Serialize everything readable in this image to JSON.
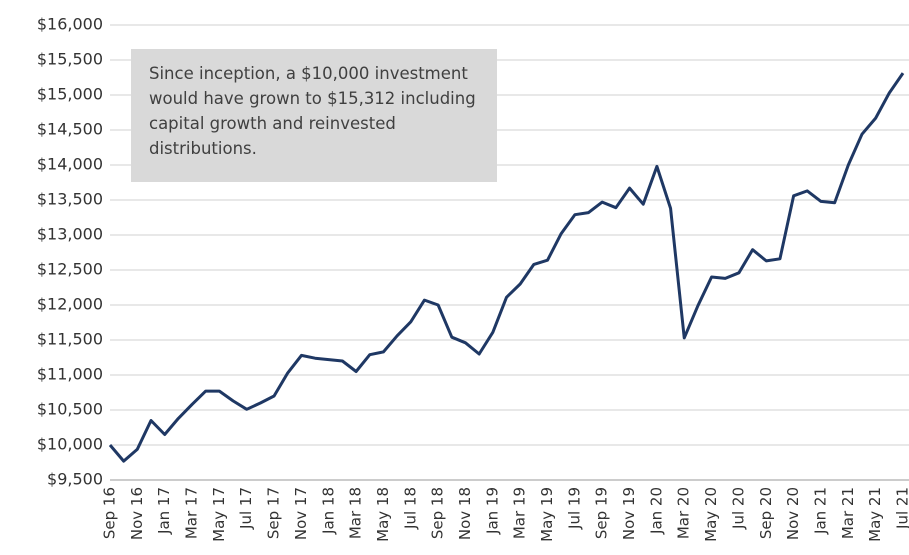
{
  "chart_data": {
    "type": "line",
    "annotation": "Since inception, a $10,000 investment would have grown to $15,312 including capital growth and reinvested distributions.",
    "categories": [
      "Sep 16",
      null,
      "Nov 16",
      null,
      "Jan 17",
      null,
      "Mar 17",
      null,
      "May 17",
      null,
      "Jul 17",
      null,
      "Sep 17",
      null,
      "Nov 17",
      null,
      "Jan 18",
      null,
      "Mar 18",
      null,
      "May 18",
      null,
      "Jul 18",
      null,
      "Sep 18",
      null,
      "Nov 18",
      null,
      "Jan 19",
      null,
      "Mar 19",
      null,
      "May 19",
      null,
      "Jul 19",
      null,
      "Sep 19",
      null,
      "Nov 19",
      null,
      "Jan 20",
      null,
      "Mar 20",
      null,
      "May 20",
      null,
      "Jul 20",
      null,
      "Sep 20",
      null,
      "Nov 20",
      null,
      "Jan 21",
      null,
      "Mar 21",
      null,
      "May 21",
      null,
      "Jul 21"
    ],
    "series": [
      {
        "color": "#1f3864",
        "values": [
          10000,
          9770,
          9940,
          10350,
          10150,
          10380,
          10580,
          10770,
          10770,
          10630,
          10510,
          10600,
          10700,
          11030,
          11280,
          11240,
          11220,
          11200,
          11050,
          11290,
          11330,
          11560,
          11760,
          12070,
          12000,
          11540,
          11460,
          11300,
          11610,
          12110,
          12300,
          12580,
          12640,
          13020,
          13290,
          13320,
          13470,
          13390,
          13670,
          13440,
          13980,
          13380,
          11530,
          11990,
          12400,
          12380,
          12460,
          12790,
          12630,
          12660,
          13560,
          13630,
          13480,
          13460,
          14000,
          14440,
          14670,
          15030,
          15312
        ]
      }
    ],
    "ylim": [
      9500,
      16000
    ],
    "yticks": [
      {
        "value": 9500,
        "label": "$9,500"
      },
      {
        "value": 10000,
        "label": "$10,000"
      },
      {
        "value": 10500,
        "label": "$10,500"
      },
      {
        "value": 11000,
        "label": "$11,000"
      },
      {
        "value": 11500,
        "label": "$11,500"
      },
      {
        "value": 12000,
        "label": "$12,000"
      },
      {
        "value": 12500,
        "label": "$12,500"
      },
      {
        "value": 13000,
        "label": "$13,000"
      },
      {
        "value": 13500,
        "label": "$13,500"
      },
      {
        "value": 14000,
        "label": "$14,000"
      },
      {
        "value": 14500,
        "label": "$14,500"
      },
      {
        "value": 15000,
        "label": "$15,000"
      },
      {
        "value": 15500,
        "label": "$15,500"
      },
      {
        "value": 16000,
        "label": "$16,000"
      }
    ],
    "grid": true
  }
}
